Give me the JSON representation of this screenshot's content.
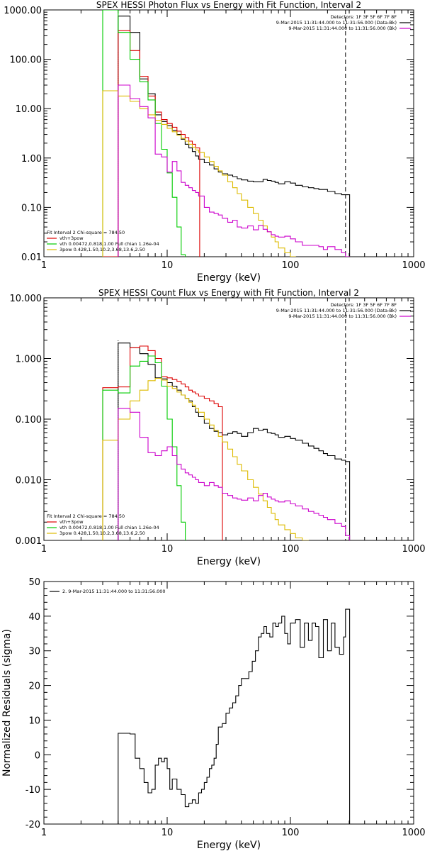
{
  "chart_data": [
    {
      "type": "line",
      "title": "SPEX HESSI Photon Flux vs Energy with Fit Function, Interval 2",
      "xlabel": "Energy (keV)",
      "ylabel": "",
      "xscale": "log",
      "yscale": "log",
      "xlim": [
        1,
        1000
      ],
      "ylim": [
        0.01,
        1000
      ],
      "xticklabels": [
        "1",
        "10",
        "100",
        "1000"
      ],
      "yticklabels": [
        "0.01",
        "0.10",
        "1.00",
        "10.00",
        "100.00",
        "1000.00"
      ],
      "legend_topright": [
        {
          "text": "Detectors: 1F 3F 5F 6F 7F 8F",
          "color": "#000000"
        },
        {
          "text": "9-Mar-2015 11:31:44.000 to 11:31:56.000 (Data-Bk)",
          "color": "#000000"
        },
        {
          "text": "9-Mar-2015 11:31:44.000 to 11:31:56.000 (Bk)",
          "color": "#cc00cc"
        }
      ],
      "legend_bottomleft": [
        {
          "text": "Fit Interval 2   Chi-square = 784.50",
          "color": "#000000"
        },
        {
          "text": "vth+3pow",
          "color": "#dd0000"
        },
        {
          "text": "vth 0.00472,0.818,1.00  Full chian 1.26e-04",
          "color": "#00cc00"
        },
        {
          "text": "3pow 0.428,1.50,10.2,3.68,13.6,2.50",
          "color": "#ddbb00"
        }
      ],
      "vline_dotted": 4.0,
      "vline_dashed": 280,
      "series": [
        {
          "name": "Data-Bk",
          "color": "#000000",
          "x": [
            4.0,
            5.0,
            6.0,
            7.0,
            8.0,
            9.0,
            10.0,
            11.0,
            12.0,
            13.0,
            14.0,
            15.0,
            16.0,
            17.0,
            18.0,
            20.0,
            22.0,
            24.0,
            26.0,
            28.0,
            31.0,
            34.0,
            37.0,
            40.0,
            45.0,
            50.0,
            55.0,
            60.0,
            65.0,
            70.0,
            75.0,
            80.0,
            90.0,
            100.0,
            110.0,
            125.0,
            140.0,
            155.0,
            170.0,
            185.0,
            200.0,
            230.0,
            260.0,
            280.0
          ],
          "y": [
            750,
            350,
            40,
            20,
            7.5,
            5.5,
            4.5,
            3.6,
            3.0,
            2.4,
            1.9,
            1.6,
            1.35,
            1.1,
            0.95,
            0.8,
            0.72,
            0.6,
            0.52,
            0.48,
            0.45,
            0.42,
            0.38,
            0.36,
            0.34,
            0.33,
            0.33,
            0.37,
            0.35,
            0.34,
            0.32,
            0.3,
            0.33,
            0.31,
            0.28,
            0.26,
            0.25,
            0.24,
            0.23,
            0.23,
            0.21,
            0.19,
            0.18,
            0.18
          ]
        },
        {
          "name": "vth+3pow",
          "color": "#dd0000",
          "x": [
            3.0,
            4.0,
            5.0,
            6.0,
            7.0,
            8.0,
            9.0,
            10.0,
            11.0,
            12.0,
            13.0,
            14.0,
            15.0,
            16.0,
            17.0
          ],
          "y": [
            0.01,
            380,
            150,
            45,
            18,
            8.5,
            6.0,
            5.0,
            4.2,
            3.5,
            3.0,
            2.6,
            2.2,
            1.9,
            1.6
          ]
        },
        {
          "name": "vth",
          "color": "#00cc00",
          "x": [
            3.0,
            4.0,
            5.0,
            6.0,
            7.0,
            8.0,
            9.0,
            10.0,
            11.0,
            12.0,
            13.0
          ],
          "y": [
            1000,
            350,
            100,
            35,
            15,
            5.0,
            1.5,
            0.5,
            0.16,
            0.04,
            0.011
          ]
        },
        {
          "name": "3pow",
          "color": "#ddbb00",
          "x": [
            3.0,
            4.0,
            5.0,
            6.0,
            7.0,
            8.0,
            9.0,
            10.0,
            11.0,
            12.0,
            13.0,
            14.0,
            15.0,
            16.0,
            17.0,
            18.0,
            20.0,
            22.0,
            24.0,
            26.0,
            28.0,
            31.0,
            34.0,
            37.0,
            40.0,
            45.0,
            50.0,
            55.0,
            60.0,
            65.0,
            70.0,
            75.0,
            80.0,
            90.0,
            100.0,
            110.0,
            125.0
          ],
          "y": [
            23,
            18,
            14,
            10,
            7.5,
            5.8,
            4.8,
            4.0,
            3.4,
            2.9,
            2.5,
            2.2,
            1.9,
            1.65,
            1.45,
            1.3,
            1.05,
            0.85,
            0.68,
            0.55,
            0.45,
            0.33,
            0.25,
            0.19,
            0.14,
            0.1,
            0.075,
            0.055,
            0.042,
            0.032,
            0.025,
            0.02,
            0.015,
            0.012,
            0.01,
            0.008,
            0.007
          ]
        },
        {
          "name": "Bk",
          "color": "#cc00cc",
          "x": [
            4.0,
            5.0,
            6.0,
            7.0,
            8.0,
            9.0,
            10.0,
            11.0,
            12.0,
            13.0,
            14.0,
            15.0,
            16.0,
            17.0,
            18.0,
            20.0,
            22.0,
            24.0,
            26.0,
            28.0,
            31.0,
            34.0,
            37.0,
            40.0,
            45.0,
            50.0,
            55.0,
            60.0,
            65.0,
            70.0,
            75.0,
            80.0,
            90.0,
            100.0,
            110.0,
            125.0,
            140.0,
            155.0,
            170.0,
            185.0,
            200.0,
            230.0,
            260.0,
            280.0
          ],
          "y": [
            30,
            16,
            11,
            6.5,
            1.2,
            1.05,
            0.52,
            0.85,
            0.55,
            0.32,
            0.28,
            0.25,
            0.22,
            0.2,
            0.17,
            0.1,
            0.08,
            0.075,
            0.07,
            0.06,
            0.05,
            0.055,
            0.04,
            0.038,
            0.042,
            0.035,
            0.043,
            0.036,
            0.032,
            0.028,
            0.026,
            0.025,
            0.026,
            0.023,
            0.02,
            0.017,
            0.017,
            0.017,
            0.016,
            0.014,
            0.016,
            0.014,
            0.012,
            0.01
          ]
        }
      ]
    },
    {
      "type": "line",
      "title": "SPEX HESSI Count Flux vs Energy with Fit Function, Interval 2",
      "xlabel": "Energy (keV)",
      "ylabel": "",
      "xscale": "log",
      "yscale": "log",
      "xlim": [
        1,
        1000
      ],
      "ylim": [
        0.001,
        10
      ],
      "xticklabels": [
        "1",
        "10",
        "100",
        "1000"
      ],
      "yticklabels": [
        "0.001",
        "0.010",
        "0.100",
        "1.000",
        "10.000"
      ],
      "legend_topright": [
        {
          "text": "Detectors: 1F 3F 5F 6F 7F 8F",
          "color": "#000000"
        },
        {
          "text": "9-Mar-2015 11:31:44.000 to 11:31:56.000 (Data-Bk)",
          "color": "#000000"
        },
        {
          "text": "9-Mar-2015 11:31:44.000 to 11:31:56.000 (Bk)",
          "color": "#cc00cc"
        }
      ],
      "legend_bottomleft": [
        {
          "text": "Fit Interval 2   Chi-square = 784.50",
          "color": "#000000"
        },
        {
          "text": "vth+3pow",
          "color": "#dd0000"
        },
        {
          "text": "vth 0.00472,0.818,1.00  Full chian 1.26e-04",
          "color": "#00cc00"
        },
        {
          "text": "3pow 0.428,1.50,10.2,3.68,13.6,2.50",
          "color": "#ddbb00"
        }
      ],
      "vline_dotted": 4.0,
      "vline_dashed": 280,
      "series": [
        {
          "name": "Data-Bk",
          "color": "#000000",
          "x": [
            4.0,
            5.0,
            6.0,
            7.0,
            8.0,
            9.0,
            10.0,
            11.0,
            12.0,
            13.0,
            14.0,
            15.0,
            16.0,
            17.0,
            18.0,
            20.0,
            22.0,
            24.0,
            26.0,
            28.0,
            31.0,
            34.0,
            37.0,
            40.0,
            45.0,
            50.0,
            55.0,
            60.0,
            65.0,
            70.0,
            75.0,
            80.0,
            90.0,
            100.0,
            110.0,
            125.0,
            140.0,
            155.0,
            170.0,
            185.0,
            200.0,
            230.0,
            260.0,
            280.0
          ],
          "y": [
            1.8,
            1.5,
            1.2,
            0.8,
            0.48,
            0.46,
            0.4,
            0.35,
            0.3,
            0.25,
            0.22,
            0.2,
            0.16,
            0.13,
            0.11,
            0.085,
            0.07,
            0.063,
            0.06,
            0.055,
            0.058,
            0.062,
            0.058,
            0.052,
            0.06,
            0.07,
            0.065,
            0.068,
            0.06,
            0.058,
            0.055,
            0.05,
            0.052,
            0.048,
            0.045,
            0.04,
            0.036,
            0.033,
            0.03,
            0.027,
            0.025,
            0.022,
            0.021,
            0.02
          ]
        },
        {
          "name": "vth+3pow",
          "color": "#dd0000",
          "x": [
            3.0,
            4.0,
            5.0,
            6.0,
            7.0,
            8.0,
            9.0,
            10.0,
            11.0,
            12.0,
            13.0,
            14.0,
            15.0,
            16.0,
            17.0,
            18.0,
            20.0,
            22.0,
            24.0,
            26.0
          ],
          "y": [
            0.33,
            0.34,
            1.5,
            1.6,
            1.35,
            1.0,
            0.5,
            0.48,
            0.45,
            0.42,
            0.38,
            0.34,
            0.3,
            0.28,
            0.26,
            0.24,
            0.22,
            0.2,
            0.18,
            0.16
          ]
        },
        {
          "name": "vth",
          "color": "#00cc00",
          "x": [
            3.0,
            4.0,
            5.0,
            6.0,
            7.0,
            8.0,
            9.0,
            10.0,
            11.0,
            12.0,
            13.0
          ],
          "y": [
            0.3,
            0.27,
            0.75,
            0.9,
            1.1,
            0.85,
            0.35,
            0.1,
            0.035,
            0.008,
            0.002
          ]
        },
        {
          "name": "3pow",
          "color": "#ddbb00",
          "x": [
            3.0,
            4.0,
            5.0,
            6.0,
            7.0,
            8.0,
            9.0,
            10.0,
            11.0,
            12.0,
            13.0,
            14.0,
            15.0,
            16.0,
            17.0,
            18.0,
            20.0,
            22.0,
            24.0,
            26.0,
            28.0,
            31.0,
            34.0,
            37.0,
            40.0,
            45.0,
            50.0,
            55.0,
            60.0,
            65.0,
            70.0,
            75.0,
            80.0,
            90.0,
            100.0,
            110.0,
            125.0,
            140.0
          ],
          "y": [
            0.045,
            0.1,
            0.2,
            0.3,
            0.43,
            0.47,
            0.44,
            0.35,
            0.32,
            0.28,
            0.25,
            0.22,
            0.19,
            0.17,
            0.15,
            0.13,
            0.1,
            0.08,
            0.065,
            0.052,
            0.042,
            0.032,
            0.024,
            0.018,
            0.014,
            0.01,
            0.0075,
            0.0058,
            0.0045,
            0.0035,
            0.0028,
            0.0022,
            0.0018,
            0.0015,
            0.0013,
            0.0011,
            0.001,
            0.0008
          ]
        },
        {
          "name": "Bk",
          "color": "#cc00cc",
          "x": [
            4.0,
            5.0,
            6.0,
            7.0,
            8.0,
            9.0,
            10.0,
            11.0,
            12.0,
            13.0,
            14.0,
            15.0,
            16.0,
            17.0,
            18.0,
            20.0,
            22.0,
            24.0,
            26.0,
            28.0,
            31.0,
            34.0,
            37.0,
            40.0,
            45.0,
            50.0,
            55.0,
            60.0,
            65.0,
            70.0,
            75.0,
            80.0,
            90.0,
            100.0,
            110.0,
            125.0,
            140.0,
            155.0,
            170.0,
            185.0,
            200.0,
            230.0,
            260.0,
            280.0
          ],
          "y": [
            0.15,
            0.13,
            0.05,
            0.028,
            0.025,
            0.03,
            0.035,
            0.025,
            0.018,
            0.015,
            0.013,
            0.012,
            0.011,
            0.01,
            0.009,
            0.008,
            0.009,
            0.008,
            0.0075,
            0.006,
            0.0055,
            0.005,
            0.0048,
            0.0046,
            0.005,
            0.0045,
            0.0055,
            0.006,
            0.0052,
            0.0048,
            0.0045,
            0.0043,
            0.0045,
            0.004,
            0.0037,
            0.0033,
            0.003,
            0.0028,
            0.0026,
            0.0024,
            0.0022,
            0.0019,
            0.0017,
            0.0012
          ]
        }
      ]
    },
    {
      "type": "line",
      "title": "",
      "xlabel": "Energy (keV)",
      "ylabel": "Normalized Residuals (sigma)",
      "xscale": "log",
      "yscale": "linear",
      "xlim": [
        1,
        1000
      ],
      "ylim": [
        -20,
        50
      ],
      "xticklabels": [
        "1",
        "10",
        "100",
        "1000"
      ],
      "yticklabels": [
        "-20",
        "-10",
        "0",
        "10",
        "20",
        "30",
        "40",
        "50"
      ],
      "legend_topleft": [
        {
          "text": "2. 9-Mar-2015 11:31:44.000 to 11:31:56.000",
          "color": "#000000"
        }
      ],
      "series": [
        {
          "name": "2. 9-Mar-2015 11:31:44.000 to 11:31:56.000",
          "color": "#000000",
          "x": [
            4.0,
            5.0,
            5.5,
            6.0,
            6.5,
            7.0,
            7.5,
            8.0,
            8.5,
            9.0,
            9.5,
            10.0,
            10.5,
            11.0,
            12.0,
            13.0,
            14.0,
            15.0,
            16.0,
            17.0,
            18.0,
            19.0,
            20.0,
            21.0,
            22.0,
            23.0,
            24.0,
            25.0,
            26.0,
            28.0,
            30.0,
            32.0,
            34.0,
            36.0,
            38.0,
            40.0,
            43.0,
            46.0,
            49.0,
            52.0,
            55.0,
            58.0,
            61.0,
            64.0,
            68.0,
            72.0,
            76.0,
            80.0,
            85.0,
            90.0,
            95.0,
            100.0,
            110.0,
            120.0,
            130.0,
            140.0,
            150.0,
            160.0,
            170.0,
            185.0,
            200.0,
            215.0,
            230.0,
            250.0,
            270.0,
            280.0
          ],
          "y": [
            6.2,
            6.0,
            -1,
            -4,
            -8,
            -11,
            -10,
            -3,
            -1,
            -2,
            -1,
            -4,
            -10,
            -7,
            -10,
            -11.5,
            -15,
            -14,
            -13,
            -14,
            -11,
            -10,
            -8,
            -6.5,
            -4,
            -3,
            -1,
            3,
            8,
            9,
            12,
            13.5,
            15,
            17,
            20,
            22,
            22,
            24,
            27,
            30,
            34,
            35,
            37,
            35,
            34,
            38,
            37,
            38,
            40,
            35,
            32,
            38,
            39,
            31,
            38,
            33,
            38,
            37,
            28,
            39,
            30,
            38,
            31,
            29,
            34,
            42
          ]
        }
      ]
    }
  ]
}
